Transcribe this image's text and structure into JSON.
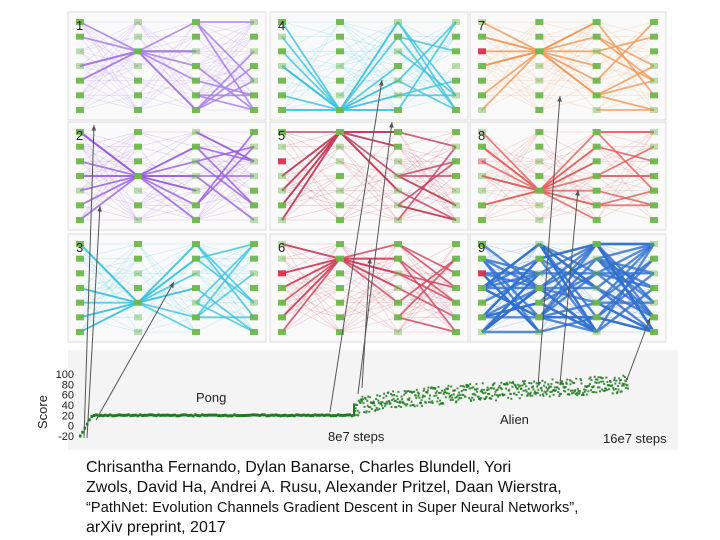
{
  "figure": {
    "panels": [
      {
        "number": "1",
        "color": "#a67de6"
      },
      {
        "number": "2",
        "color": "#9a5fe0"
      },
      {
        "number": "3",
        "color": "#3ec3dd"
      },
      {
        "number": "4",
        "color": "#3ec3dd"
      },
      {
        "number": "5",
        "color": "#c2405a"
      },
      {
        "number": "6",
        "color": "#d0435c"
      },
      {
        "number": "7",
        "color": "#f09a5a"
      },
      {
        "number": "8",
        "color": "#e0605c"
      },
      {
        "number": "9",
        "color": "#2f6fd0"
      }
    ],
    "node_color": "#6db84a",
    "highlight_node_color": "#d8324a"
  },
  "chart_data": {
    "type": "scatter",
    "ylabel": "Score",
    "yticks": [
      "100",
      "80",
      "60",
      "40",
      "20",
      "0",
      "-20"
    ],
    "ylim": [
      -20,
      100
    ],
    "x_markers": [
      "8e7 steps",
      "16e7 steps"
    ],
    "tasks": [
      {
        "name": "Pong",
        "x_range": [
          0,
          8
        ],
        "level": 20
      },
      {
        "name": "Alien",
        "x_range": [
          8,
          16
        ],
        "level_start": 40,
        "level_end": 90
      }
    ],
    "series_color": "#1f7a1f"
  },
  "caption": {
    "authors_line1": "Chrisantha Fernando, Dylan Banarse, Charles Blundell, Yori",
    "authors_line2": "Zwols, David Ha, Andrei A. Rusu, Alexander Pritzel, Daan Wierstra,",
    "title": "“PathNet: Evolution Channels Gradient Descent in Super Neural Networks”,",
    "venue": "arXiv preprint, 2017"
  }
}
